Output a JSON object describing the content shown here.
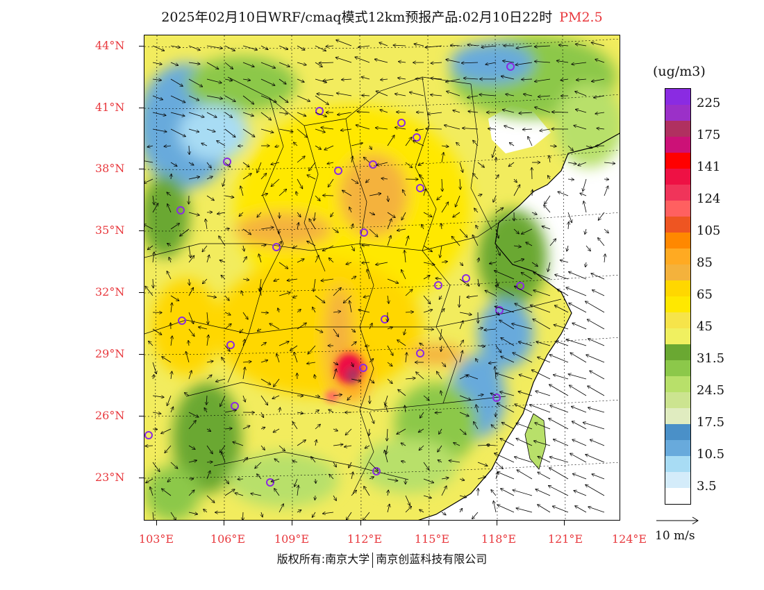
{
  "header": {
    "title": "2025年02月10日WRF/cmaq模式12km预报产品:02月10日22时",
    "species": "PM2.5"
  },
  "map": {
    "lat_labels": [
      "44°N",
      "41°N",
      "38°N",
      "35°N",
      "32°N",
      "29°N",
      "26°N",
      "23°N"
    ],
    "lon_labels": [
      "103°E",
      "106°E",
      "109°E",
      "112°E",
      "115°E",
      "118°E",
      "121°E",
      "124°E"
    ],
    "colors": {
      "sea": "#ffffff",
      "border": "#000000"
    }
  },
  "legend": {
    "unit": "(ug/m3)",
    "labels": [
      "225",
      "175",
      "141",
      "124",
      "105",
      "85",
      "65",
      "45",
      "31.5",
      "24.5",
      "17.5",
      "10.5",
      "3.5"
    ],
    "colors": [
      "#8a2be2",
      "#9b30c8",
      "#b03060",
      "#cc1177",
      "#ff0000",
      "#ee1144",
      "#f0345a",
      "#ff6060",
      "#ee5522",
      "#ff8800",
      "#ffaa22",
      "#f4b23c",
      "#ffd700",
      "#ffe800",
      "#f6e44a",
      "#f0f060",
      "#6aa832",
      "#8cc84a",
      "#b8e06a",
      "#cce490",
      "#e0ecc0",
      "#4a90c8",
      "#68aadc",
      "#a8dcf4",
      "#d4ecfa",
      "#ffffff"
    ],
    "wind_label": "10 m/s"
  },
  "footer": {
    "left": "版权所有:南京大学",
    "right": "南京创蓝科技有限公司"
  }
}
